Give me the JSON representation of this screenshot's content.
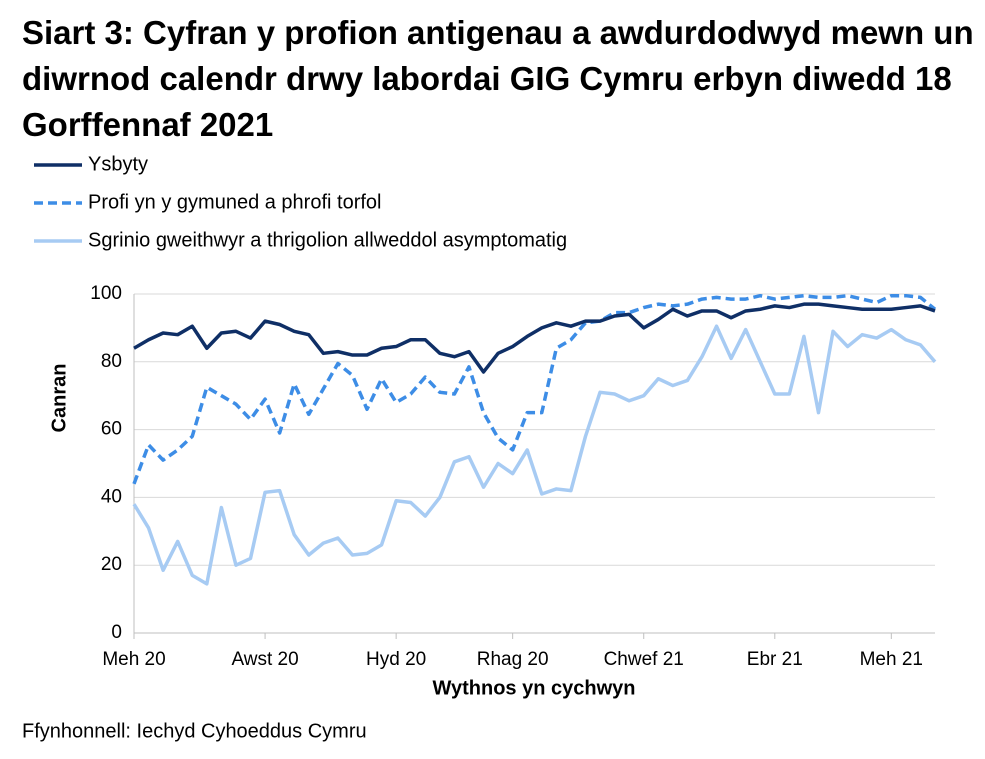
{
  "chart_data": {
    "type": "line",
    "title": "Siart 3: Cyfran y profion antigenau a awdurdodwyd mewn un diwrnod calendr drwy labordai GIG Cymru erbyn diwedd 18 Gorffennaf 2021",
    "x_label": "Wythnos yn cychwyn",
    "y_label": "Canran",
    "source": "Ffynhonnell: Iechyd Cyhoeddus Cymru",
    "categories": [
      "Meh 20",
      null,
      null,
      null,
      null,
      null,
      null,
      null,
      null,
      "Awst 20",
      null,
      null,
      null,
      null,
      null,
      null,
      null,
      null,
      "Hyd 20",
      null,
      null,
      null,
      null,
      null,
      null,
      null,
      "Rhag 20",
      null,
      null,
      null,
      null,
      null,
      null,
      null,
      null,
      "Chwef 21",
      null,
      null,
      null,
      null,
      null,
      null,
      null,
      null,
      "Ebr 21",
      null,
      null,
      null,
      null,
      null,
      null,
      null,
      "Meh 21",
      null,
      null,
      null
    ],
    "series": [
      {
        "name": "Ysbyty",
        "color": "#0f2f66",
        "style": "solid",
        "values": [
          84,
          86.5,
          88.5,
          88,
          90.5,
          84,
          88.5,
          89,
          87,
          92,
          91,
          89,
          88,
          82.5,
          83,
          82,
          82,
          84,
          84.5,
          86.5,
          86.5,
          82.5,
          81.5,
          83,
          77,
          82.5,
          84.5,
          87.5,
          90,
          91.5,
          90.5,
          92,
          92,
          93.5,
          94,
          90,
          92.5,
          95.5,
          93.5,
          95,
          95,
          93,
          95,
          95.5,
          96.5,
          96,
          97,
          97,
          96.5,
          96,
          95.5,
          95.5,
          95.5,
          96,
          96.5,
          95
        ]
      },
      {
        "name": "Profi yn y gymuned a phrofi torfol",
        "color": "#3d8de6",
        "style": "dashed",
        "values": [
          44,
          55.5,
          51,
          54,
          58,
          72.5,
          70,
          67.5,
          63,
          69,
          59,
          73.5,
          64.5,
          72,
          79.5,
          76,
          66,
          75,
          68,
          70.5,
          75.5,
          71,
          70.5,
          78.5,
          65,
          57.5,
          54,
          65,
          65,
          84,
          86.5,
          91.5,
          92,
          94.5,
          94.5,
          96,
          97,
          96.5,
          97,
          98.5,
          99,
          98.5,
          98.5,
          99.5,
          98.5,
          99,
          99.5,
          99,
          99,
          99.5,
          98.5,
          97.5,
          99.5,
          99.5,
          99,
          95.5
        ]
      },
      {
        "name": "Sgrinio gweithwyr a thrigolion allweddol asymptomatig",
        "color": "#a7cbf3",
        "style": "solid",
        "values": [
          38,
          31,
          18.5,
          27,
          17,
          14.5,
          37,
          20,
          22,
          41.5,
          42,
          29,
          23,
          26.5,
          28,
          23,
          23.5,
          26,
          39,
          38.5,
          34.5,
          40,
          50.5,
          52,
          43,
          50,
          47,
          54,
          41,
          42.5,
          42,
          58,
          71,
          70.5,
          68.5,
          70,
          75,
          73,
          74.5,
          81.5,
          90.5,
          81,
          89.5,
          80,
          70.5,
          70.5,
          87.5,
          65,
          89,
          84.5,
          88,
          87,
          89.5,
          86.5,
          85,
          80
        ]
      }
    ],
    "ylim": [
      0,
      100
    ],
    "yticks": [
      0,
      20,
      40,
      60,
      80,
      100
    ],
    "grid": true,
    "legend": "top-left"
  }
}
